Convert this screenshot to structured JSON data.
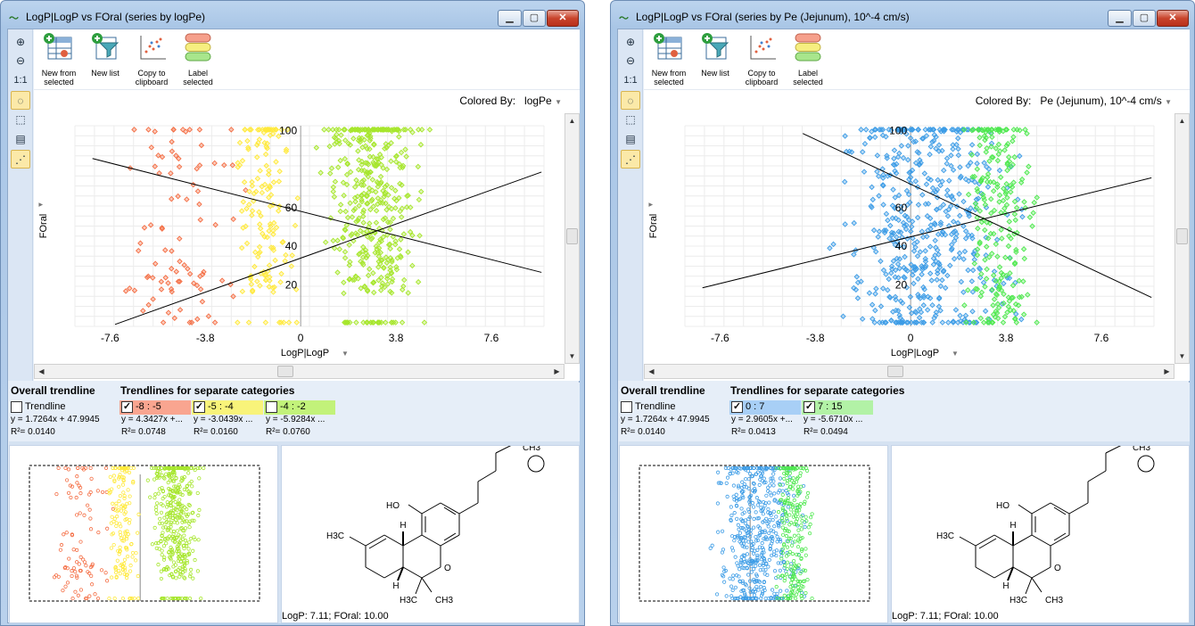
{
  "toolbar": {
    "new_from_selected": "New from\nselected",
    "new_list": "New list",
    "copy_to_clipboard": "Copy to\nclipboard",
    "label_selected": "Label\nselected",
    "one_to_one": "1:1"
  },
  "windows": [
    {
      "title": "LogP|LogP vs FOral (series by logPe)",
      "colored_by_label": "Colored By:",
      "colored_by_value": "logPe",
      "y_axis_label": "FOral",
      "x_axis_label": "LogP|LogP",
      "overall_header": "Overall trendline",
      "separate_header": "Trendlines for separate categories",
      "overall": {
        "label": "Trendline",
        "checked": false,
        "eq": "y = 1.7264x + 47.9945",
        "r2": "R²= 0.0140"
      },
      "categories": [
        {
          "label": "-8 : -5",
          "checked": true,
          "color": "#f9a590",
          "eq": "y = 4.3427x +...",
          "r2": "R²= 0.0748"
        },
        {
          "label": "-5 : -4",
          "checked": true,
          "color": "#f8f37a",
          "eq": "y = -3.0439x ...",
          "r2": "R²= 0.0160"
        },
        {
          "label": "-4 : -2",
          "checked": false,
          "color": "#c2f27a",
          "eq": "y = -5.9284x ...",
          "r2": "R²= 0.0760"
        }
      ],
      "mol_caption": "LogP: 7.11; FOral: 10.00",
      "chart_data": {
        "type": "scatter",
        "x_ticks": [
          "-7.6",
          "-3.8",
          "0",
          "3.8",
          "7.6"
        ],
        "y_ticks": [
          "20",
          "40",
          "60",
          "100"
        ],
        "xlim": [
          -9,
          9.7
        ],
        "ylim": [
          -2,
          102
        ],
        "trendlines": [
          {
            "from": [
              -8.3,
              85
            ],
            "to": [
              9.6,
              26
            ]
          },
          {
            "from": [
              -7.4,
              -1
            ],
            "to": [
              9.6,
              78
            ]
          }
        ],
        "series_colors": [
          "#f46d43",
          "#ffe93a",
          "#a6e62c"
        ]
      }
    },
    {
      "title": "LogP|LogP vs FOral (series by Pe (Jejunum), 10^-4 cm/s)",
      "colored_by_label": "Colored By:",
      "colored_by_value": "Pe (Jejunum), 10^-4 cm/s",
      "y_axis_label": "FOral",
      "x_axis_label": "LogP|LogP",
      "overall_header": "Overall trendline",
      "separate_header": "Trendlines for separate categories",
      "overall": {
        "label": "Trendline",
        "checked": false,
        "eq": "y = 1.7264x + 47.9945",
        "r2": "R²= 0.0140"
      },
      "categories": [
        {
          "label": "0 : 7",
          "checked": true,
          "color": "#a8cff6",
          "eq": "y = 2.9605x +...",
          "r2": "R²= 0.0413"
        },
        {
          "label": "7 : 15",
          "checked": true,
          "color": "#b2f2a6",
          "eq": "y = -5.6710x ...",
          "r2": "R²= 0.0494"
        }
      ],
      "mol_caption": "LogP: 7.11; FOral: 10.00",
      "chart_data": {
        "type": "scatter",
        "x_ticks": [
          "-7.6",
          "-3.8",
          "0",
          "3.8",
          "7.6"
        ],
        "y_ticks": [
          "20",
          "40",
          "60",
          "100"
        ],
        "xlim": [
          -9,
          9.7
        ],
        "ylim": [
          -2,
          102
        ],
        "trendlines": [
          {
            "from": [
              -4.3,
              98
            ],
            "to": [
              9.6,
              13
            ]
          },
          {
            "from": [
              -8.3,
              18
            ],
            "to": [
              9.6,
              75
            ]
          }
        ],
        "series_colors": [
          "#3c9ce6",
          "#4ee84e"
        ]
      }
    }
  ],
  "molecule": {
    "labels": [
      "CH3",
      "HO",
      "H",
      "H3C",
      "O",
      "H",
      "H3C",
      "CH3"
    ]
  }
}
